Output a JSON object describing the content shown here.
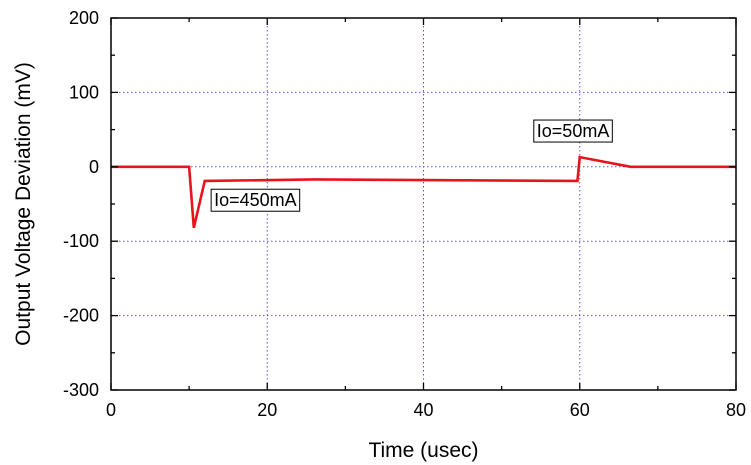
{
  "chart_data": {
    "type": "line",
    "xlabel": "Time (usec)",
    "ylabel": "Output Voltage Deviation (mV)",
    "xlim": [
      0,
      80
    ],
    "ylim": [
      -300,
      200
    ],
    "xticks": [
      0,
      20,
      40,
      60,
      80
    ],
    "yticks": [
      -300,
      -200,
      -100,
      0,
      100,
      200
    ],
    "xtick_labels": [
      "0",
      "20",
      "40",
      "60",
      "80"
    ],
    "ytick_labels": [
      "-300",
      "-200",
      "-100",
      "0",
      "100",
      "200"
    ],
    "grid": true,
    "series": [
      {
        "color": "#e8141b",
        "x": [
          0,
          10.0,
          10.6,
          12.0,
          26.0,
          59.7,
          60.0,
          66.5,
          80
        ],
        "y": [
          0,
          0,
          -82,
          -19,
          -17,
          -19,
          13,
          0,
          0
        ]
      }
    ],
    "annotations": [
      {
        "text": "Io=450mA",
        "x": 13.2,
        "y": -53
      },
      {
        "text": "Io=50mA",
        "x": 54.5,
        "y": 40
      }
    ]
  }
}
